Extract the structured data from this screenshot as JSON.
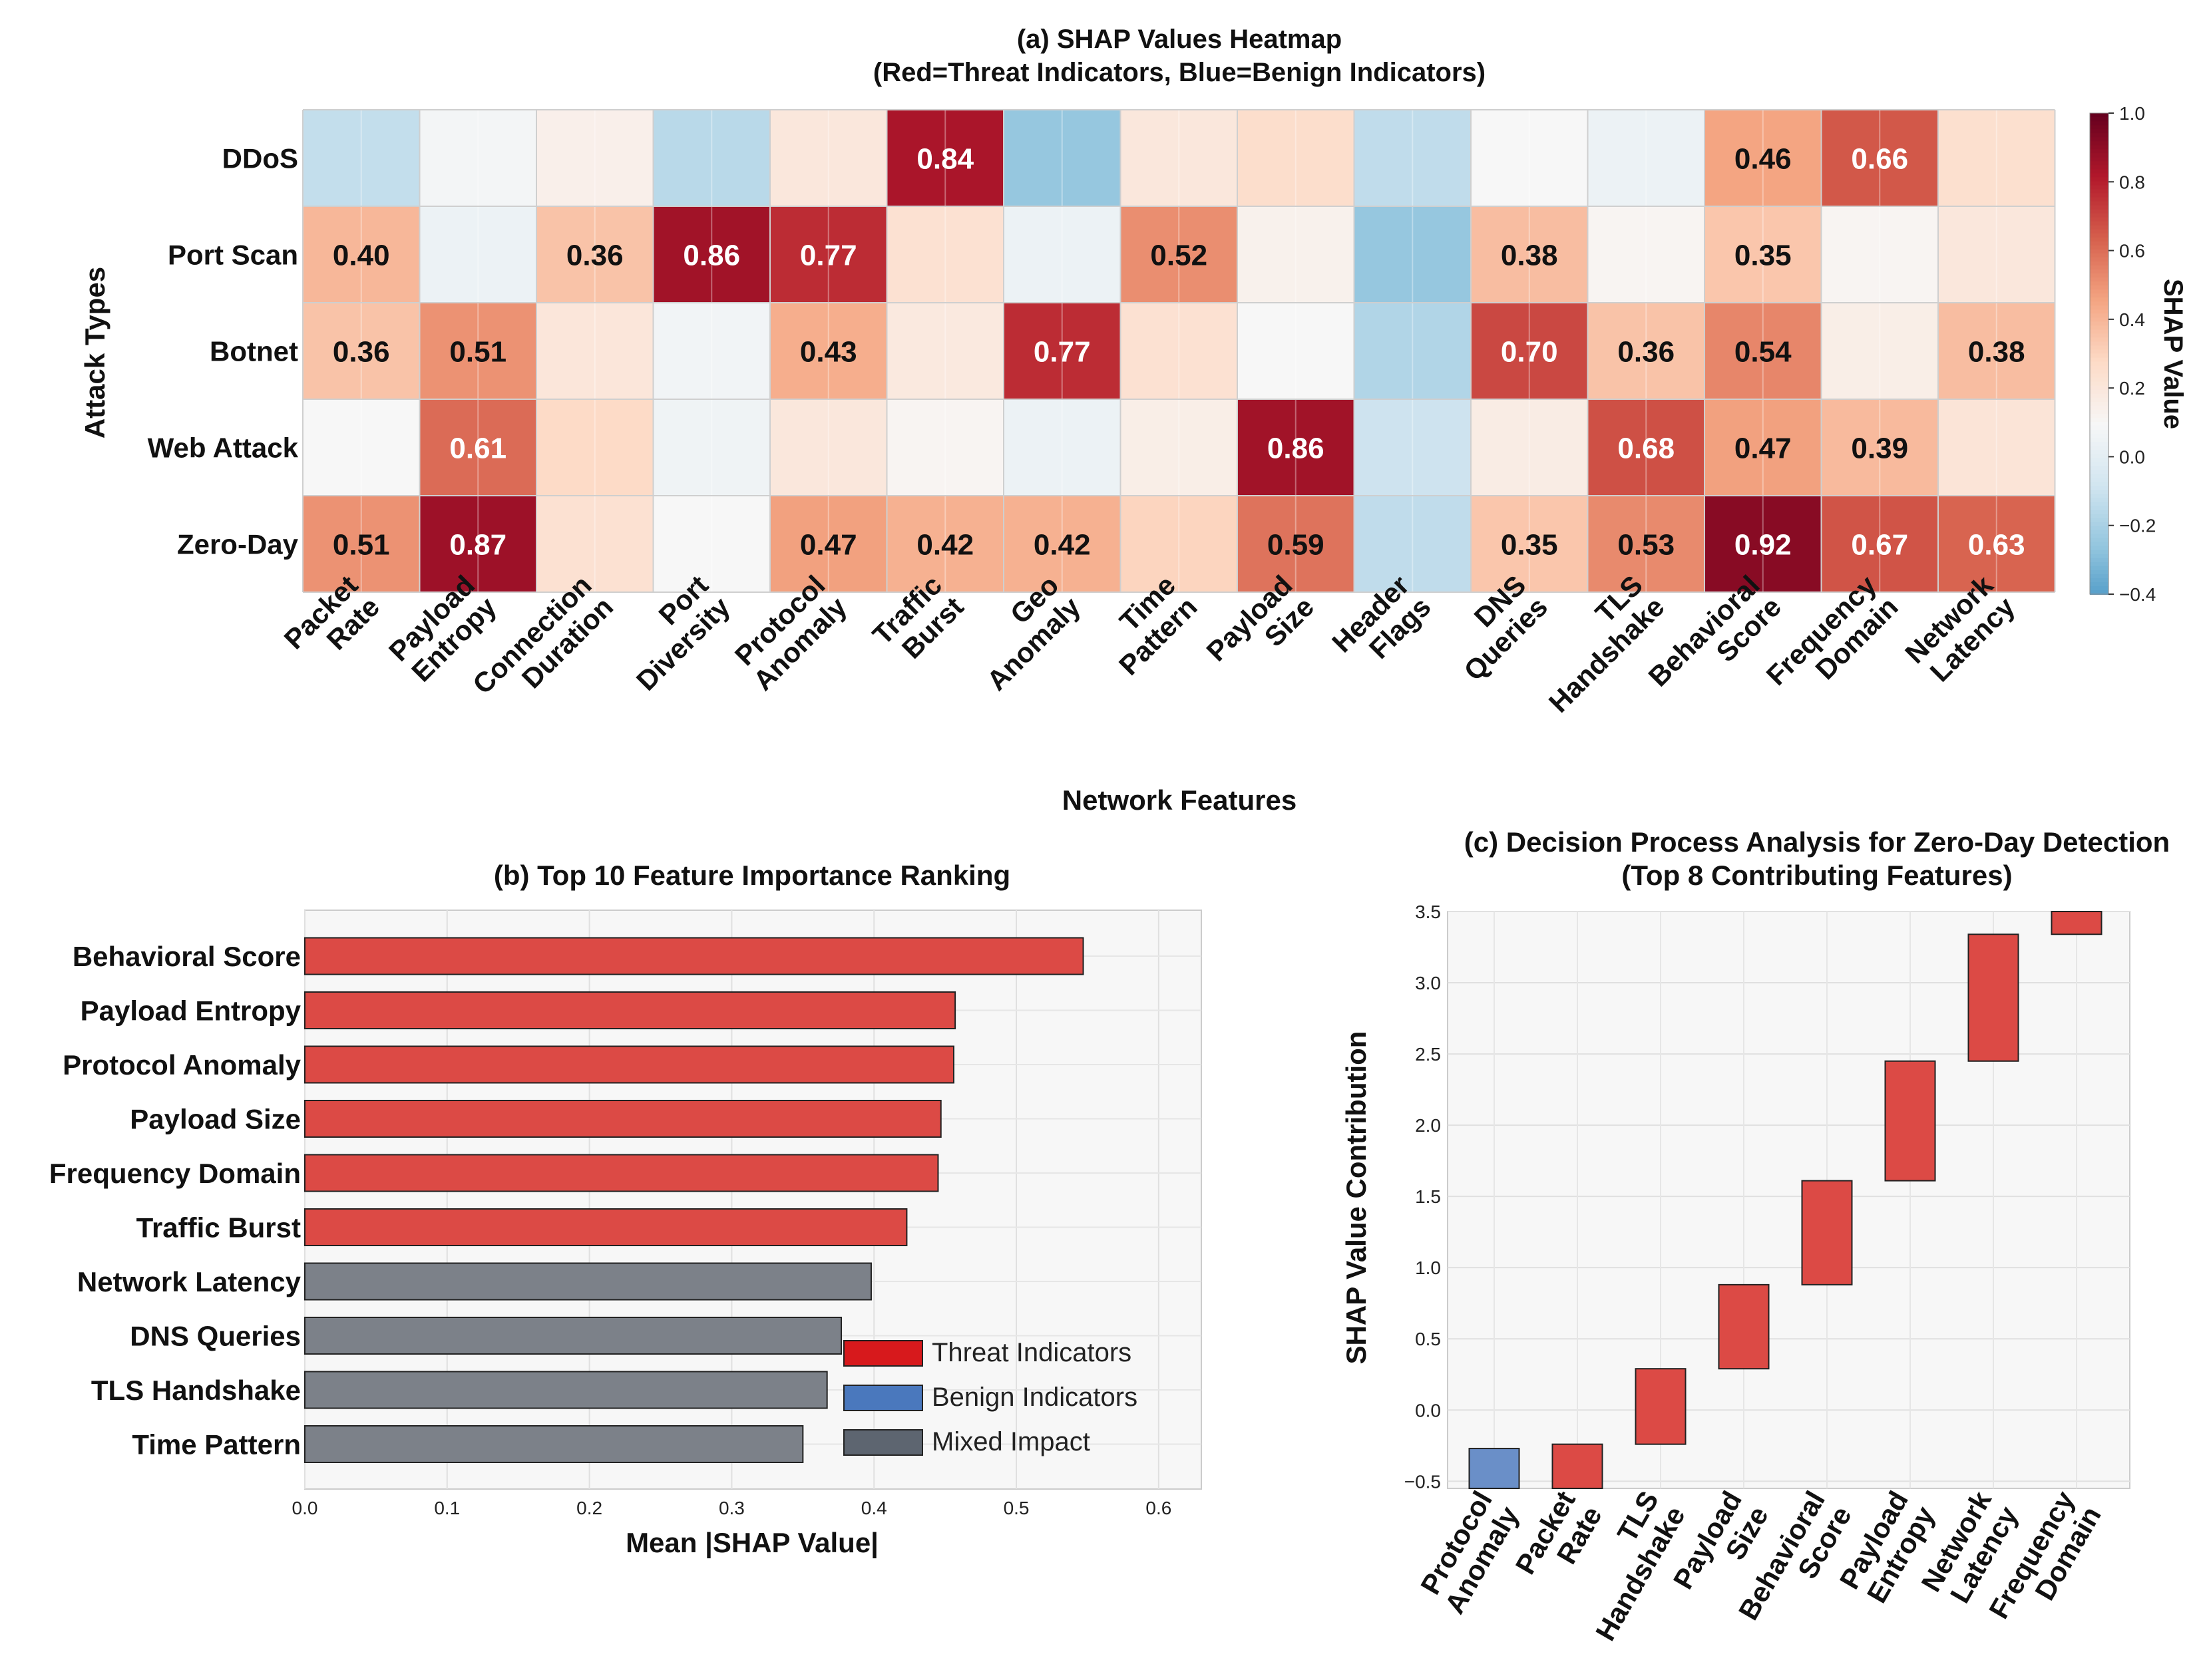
{
  "chart_data": [
    {
      "type": "heatmap",
      "title": "(a) SHAP Values Heatmap",
      "subtitle": "(Red=Threat Indicators, Blue=Benign Indicators)",
      "xlabel": "Network Features",
      "ylabel": "Attack Types",
      "colorbar_label": "SHAP Value",
      "colorbar_range": [
        -0.4,
        1.0
      ],
      "colorbar_ticks": [
        "1.0",
        "0.8",
        "0.6",
        "0.4",
        "0.2",
        "0.0",
        "−0.2",
        "−0.4"
      ],
      "colorbar_tick_values": [
        1.0,
        0.8,
        0.6,
        0.4,
        0.2,
        0.0,
        -0.2,
        -0.4
      ],
      "rows": [
        "DDoS",
        "Port Scan",
        "Botnet",
        "Web Attack",
        "Zero-Day"
      ],
      "columns": [
        [
          "Packet",
          "Rate"
        ],
        [
          "Payload",
          "Entropy"
        ],
        [
          "Connection",
          "Duration"
        ],
        [
          "Port",
          "Diversity"
        ],
        [
          "Protocol",
          "Anomaly"
        ],
        [
          "Traffic",
          "Burst"
        ],
        [
          "Geo",
          "Anomaly"
        ],
        [
          "Time",
          "Pattern"
        ],
        [
          "Payload",
          "Size"
        ],
        [
          "Header",
          "Flags"
        ],
        [
          "DNS",
          "Queries"
        ],
        [
          "TLS",
          "Handshake"
        ],
        [
          "Behavioral",
          "Score"
        ],
        [
          "Frequency",
          "Domain"
        ],
        [
          "Network",
          "Latency"
        ]
      ],
      "values": [
        [
          -0.12,
          0.08,
          0.15,
          -0.15,
          0.2,
          0.84,
          -0.25,
          0.2,
          0.26,
          -0.13,
          0.1,
          0.05,
          0.46,
          0.66,
          0.25
        ],
        [
          0.4,
          0.05,
          0.36,
          0.86,
          0.77,
          0.24,
          0.05,
          0.52,
          0.14,
          -0.25,
          0.38,
          0.12,
          0.35,
          0.12,
          0.2
        ],
        [
          0.36,
          0.51,
          0.21,
          0.07,
          0.43,
          0.19,
          0.77,
          0.24,
          0.1,
          -0.17,
          0.7,
          0.36,
          0.54,
          0.16,
          0.38
        ],
        [
          0.1,
          0.61,
          0.28,
          0.06,
          0.2,
          0.12,
          0.05,
          0.16,
          0.86,
          -0.09,
          0.17,
          0.68,
          0.47,
          0.39,
          0.22
        ],
        [
          0.51,
          0.87,
          0.24,
          0.1,
          0.47,
          0.42,
          0.42,
          0.3,
          0.59,
          -0.13,
          0.35,
          0.53,
          0.92,
          0.67,
          0.63
        ]
      ],
      "annotations": [
        {
          "row": 0,
          "col": 5,
          "text": "0.84",
          "color": "white"
        },
        {
          "row": 0,
          "col": 12,
          "text": "0.46",
          "color": "black"
        },
        {
          "row": 0,
          "col": 13,
          "text": "0.66",
          "color": "white"
        },
        {
          "row": 1,
          "col": 0,
          "text": "0.40",
          "color": "black"
        },
        {
          "row": 1,
          "col": 2,
          "text": "0.36",
          "color": "black"
        },
        {
          "row": 1,
          "col": 3,
          "text": "0.86",
          "color": "white"
        },
        {
          "row": 1,
          "col": 4,
          "text": "0.77",
          "color": "white"
        },
        {
          "row": 1,
          "col": 7,
          "text": "0.52",
          "color": "black"
        },
        {
          "row": 1,
          "col": 10,
          "text": "0.38",
          "color": "black"
        },
        {
          "row": 1,
          "col": 12,
          "text": "0.35",
          "color": "black"
        },
        {
          "row": 2,
          "col": 0,
          "text": "0.36",
          "color": "black"
        },
        {
          "row": 2,
          "col": 1,
          "text": "0.51",
          "color": "black"
        },
        {
          "row": 2,
          "col": 4,
          "text": "0.43",
          "color": "black"
        },
        {
          "row": 2,
          "col": 6,
          "text": "0.77",
          "color": "white"
        },
        {
          "row": 2,
          "col": 10,
          "text": "0.70",
          "color": "white"
        },
        {
          "row": 2,
          "col": 11,
          "text": "0.36",
          "color": "black"
        },
        {
          "row": 2,
          "col": 12,
          "text": "0.54",
          "color": "black"
        },
        {
          "row": 2,
          "col": 14,
          "text": "0.38",
          "color": "black"
        },
        {
          "row": 3,
          "col": 1,
          "text": "0.61",
          "color": "white"
        },
        {
          "row": 3,
          "col": 8,
          "text": "0.86",
          "color": "white"
        },
        {
          "row": 3,
          "col": 11,
          "text": "0.68",
          "color": "white"
        },
        {
          "row": 3,
          "col": 12,
          "text": "0.47",
          "color": "black"
        },
        {
          "row": 3,
          "col": 13,
          "text": "0.39",
          "color": "black"
        },
        {
          "row": 4,
          "col": 0,
          "text": "0.51",
          "color": "black"
        },
        {
          "row": 4,
          "col": 1,
          "text": "0.87",
          "color": "white"
        },
        {
          "row": 4,
          "col": 4,
          "text": "0.47",
          "color": "black"
        },
        {
          "row": 4,
          "col": 5,
          "text": "0.42",
          "color": "black"
        },
        {
          "row": 4,
          "col": 6,
          "text": "0.42",
          "color": "black"
        },
        {
          "row": 4,
          "col": 8,
          "text": "0.59",
          "color": "black"
        },
        {
          "row": 4,
          "col": 10,
          "text": "0.35",
          "color": "black"
        },
        {
          "row": 4,
          "col": 11,
          "text": "0.53",
          "color": "black"
        },
        {
          "row": 4,
          "col": 12,
          "text": "0.92",
          "color": "white"
        },
        {
          "row": 4,
          "col": 13,
          "text": "0.67",
          "color": "white"
        },
        {
          "row": 4,
          "col": 14,
          "text": "0.63",
          "color": "white"
        }
      ]
    },
    {
      "type": "bar",
      "orientation": "horizontal",
      "title": "(b) Top 10 Feature Importance Ranking",
      "xlabel": "Mean |SHAP Value|",
      "xlim": [
        0.0,
        0.63
      ],
      "xticks": [
        0.0,
        0.1,
        0.2,
        0.3,
        0.4,
        0.5,
        0.6
      ],
      "xtick_labels": [
        "0.0",
        "0.1",
        "0.2",
        "0.3",
        "0.4",
        "0.5",
        "0.6"
      ],
      "categories": [
        "Behavioral Score",
        "Payload Entropy",
        "Protocol Anomaly",
        "Payload Size",
        "Frequency Domain",
        "Traffic Burst",
        "Network Latency",
        "DNS Queries",
        "TLS Handshake",
        "Time Pattern"
      ],
      "values": [
        0.547,
        0.457,
        0.456,
        0.447,
        0.445,
        0.423,
        0.398,
        0.377,
        0.367,
        0.35
      ],
      "groups": [
        "threat",
        "threat",
        "threat",
        "threat",
        "threat",
        "threat",
        "mixed",
        "mixed",
        "mixed",
        "mixed"
      ],
      "legend": [
        {
          "key": "threat",
          "label": "Threat Indicators",
          "color": "#d7191c"
        },
        {
          "key": "benign",
          "label": "Benign Indicators",
          "color": "#4a78bd"
        },
        {
          "key": "mixed",
          "label": "Mixed Impact",
          "color": "#5d6570"
        }
      ],
      "legend_position": "lower-right"
    },
    {
      "type": "waterfall",
      "title": "(c) Decision Process Analysis for Zero-Day Detection",
      "subtitle": "(Top 8 Contributing Features)",
      "ylabel": "SHAP Value Contribution",
      "ylim": [
        -0.55,
        3.5
      ],
      "yticks": [
        -0.5,
        0.0,
        0.5,
        1.0,
        1.5,
        2.0,
        2.5,
        3.0,
        3.5
      ],
      "ytick_labels": [
        "−0.5",
        "0.0",
        "0.5",
        "1.0",
        "1.5",
        "2.0",
        "2.5",
        "3.0",
        "3.5"
      ],
      "categories": [
        [
          "Protocol",
          "Anomaly"
        ],
        [
          "Packet",
          "Rate"
        ],
        [
          "TLS",
          "Handshake"
        ],
        [
          "Payload",
          "Size"
        ],
        [
          "Behavioral",
          "Score"
        ],
        [
          "Payload",
          "Entropy"
        ],
        [
          "Network",
          "Latency"
        ],
        [
          "Frequency",
          "Domain"
        ]
      ],
      "bars": [
        {
          "start": -0.27,
          "end": -0.55,
          "color": "benign"
        },
        {
          "start": -0.55,
          "end": -0.24,
          "color": "threat"
        },
        {
          "start": -0.24,
          "end": 0.29,
          "color": "threat"
        },
        {
          "start": 0.29,
          "end": 0.88,
          "color": "threat"
        },
        {
          "start": 0.88,
          "end": 1.61,
          "color": "threat"
        },
        {
          "start": 1.61,
          "end": 2.45,
          "color": "threat"
        },
        {
          "start": 2.45,
          "end": 3.34,
          "color": "threat"
        },
        {
          "start": 3.34,
          "end": 3.55,
          "color": "threat"
        }
      ]
    }
  ],
  "colors": {
    "threat_bar": "#dc4a45",
    "benign_bar": "#6a8fc8",
    "mixed_bar": "#7c8189",
    "legend_threat": "#d7191c",
    "legend_benign": "#4a78bd",
    "legend_mixed": "#5d6570"
  }
}
